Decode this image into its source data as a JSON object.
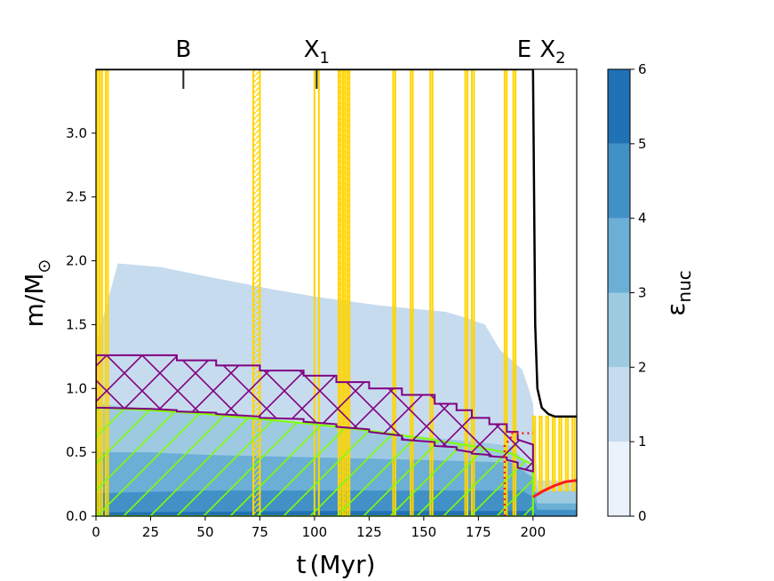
{
  "chart_data": {
    "type": "kippenhahn",
    "xlabel_main": "t",
    "xlabel_unit": "(Myr)",
    "ylabel_main": "m/M",
    "ylabel_sub": "⊙",
    "xlim": [
      0,
      220
    ],
    "ylim": [
      0,
      3.5
    ],
    "xticks": [
      0,
      25,
      50,
      75,
      100,
      125,
      150,
      175,
      200
    ],
    "yticks": [
      0.0,
      0.5,
      1.0,
      1.5,
      2.0,
      2.5,
      3.0
    ],
    "events": [
      {
        "label": "B",
        "sub": "",
        "t": 40,
        "mark": true
      },
      {
        "label": "X",
        "sub": "1",
        "t": 101,
        "mark": true
      },
      {
        "label": "E",
        "sub": "",
        "t": 196,
        "mark": false
      },
      {
        "label": "X",
        "sub": "2",
        "t": 209,
        "mark": false
      }
    ],
    "colorbar": {
      "label_main": "ε",
      "label_sub": "nuc",
      "ticks": [
        0,
        1,
        2,
        3,
        4,
        5,
        6
      ],
      "levels": [
        "#eaf2fb",
        "#c7dbef",
        "#9ecae1",
        "#6baed6",
        "#4191c6",
        "#2171b5",
        "#08519c"
      ]
    },
    "stellar_mass": {
      "t": [
        0,
        200,
        201,
        202,
        204,
        207,
        210,
        220
      ],
      "m": [
        3.5,
        3.5,
        1.5,
        1.0,
        0.85,
        0.8,
        0.78,
        0.78
      ]
    },
    "nuc_regions": [
      {
        "level": 1,
        "t": [
          0,
          10,
          30,
          50,
          80,
          100,
          130,
          160,
          170,
          178,
          185,
          195,
          198,
          200,
          202,
          220
        ],
        "m_top": [
          1.35,
          1.98,
          1.95,
          1.88,
          1.78,
          1.72,
          1.65,
          1.6,
          1.55,
          1.5,
          1.3,
          1.15,
          1.0,
          0.88,
          0.28,
          0.28
        ]
      },
      {
        "level": 2,
        "t": [
          0,
          25,
          50,
          75,
          100,
          125,
          150,
          175,
          190,
          200,
          202,
          220
        ],
        "m_top": [
          0.88,
          0.84,
          0.8,
          0.76,
          0.72,
          0.67,
          0.62,
          0.58,
          0.55,
          0.35,
          0.2,
          0.2
        ]
      },
      {
        "level": 3,
        "t": [
          0,
          25,
          50,
          100,
          150,
          190,
          200,
          202,
          220
        ],
        "m_top": [
          0.5,
          0.5,
          0.48,
          0.46,
          0.44,
          0.42,
          0.3,
          0.1,
          0.1
        ]
      },
      {
        "level": 4,
        "t": [
          0,
          50,
          100,
          150,
          195,
          200,
          202,
          220
        ],
        "m_top": [
          0.18,
          0.2,
          0.2,
          0.2,
          0.2,
          0.15,
          0.05,
          0.05
        ]
      },
      {
        "level": 5,
        "t": [
          0,
          100,
          200,
          202
        ],
        "m_top": [
          0.03,
          0.04,
          0.04,
          0.0
        ]
      }
    ],
    "envelope_convection": {
      "t": [
        0,
        25,
        37,
        37,
        55,
        55,
        75,
        75,
        95,
        95,
        110,
        110,
        125,
        125,
        140,
        140,
        155,
        155,
        165,
        165,
        172,
        172,
        180,
        180,
        188,
        188,
        193,
        193,
        200
      ],
      "m_top": [
        1.26,
        1.26,
        1.26,
        1.22,
        1.22,
        1.18,
        1.18,
        1.14,
        1.14,
        1.1,
        1.1,
        1.05,
        1.05,
        1.0,
        1.0,
        0.95,
        0.95,
        0.88,
        0.88,
        0.83,
        0.83,
        0.77,
        0.77,
        0.72,
        0.72,
        0.66,
        0.66,
        0.6,
        0.56
      ],
      "m_bottom": [
        0.85,
        0.84,
        0.83,
        0.82,
        0.81,
        0.8,
        0.78,
        0.77,
        0.76,
        0.74,
        0.72,
        0.7,
        0.68,
        0.66,
        0.63,
        0.6,
        0.58,
        0.55,
        0.54,
        0.52,
        0.5,
        0.49,
        0.48,
        0.47,
        0.46,
        0.44,
        0.42,
        0.38,
        0.35
      ],
      "color": "#800080"
    },
    "core_convection": {
      "t": [
        0,
        25,
        50,
        75,
        100,
        125,
        150,
        175,
        190,
        200
      ],
      "m_top": [
        0.85,
        0.83,
        0.8,
        0.76,
        0.72,
        0.67,
        0.61,
        0.54,
        0.49,
        0.4
      ],
      "color": "#7fff00"
    },
    "burning_lines": {
      "color": "#ff1a1a",
      "dotted": {
        "t": [
          187,
          187,
          190,
          190,
          193,
          200
        ],
        "m": [
          0.0,
          0.55,
          0.62,
          0.65,
          0.65,
          0.65
        ]
      },
      "solid": {
        "t": [
          200,
          205,
          210,
          215,
          220
        ],
        "m": [
          0.15,
          0.2,
          0.24,
          0.27,
          0.28
        ]
      }
    },
    "flashes": {
      "color": "#ffd500",
      "t_ranges": [
        [
          0.5,
          1.5
        ],
        [
          1.8,
          2.8
        ],
        [
          4.5,
          5.5
        ],
        [
          72,
          75
        ],
        [
          100,
          102
        ],
        [
          111,
          112
        ],
        [
          113,
          114
        ],
        [
          115,
          116
        ],
        [
          136,
          137
        ],
        [
          144,
          145
        ],
        [
          153,
          154
        ],
        [
          169,
          170
        ],
        [
          172,
          173
        ],
        [
          187,
          188
        ],
        [
          191,
          192
        ]
      ],
      "post_t_ranges": [
        [
          200,
          201
        ],
        [
          203,
          204
        ],
        [
          206,
          207
        ],
        [
          209,
          210
        ],
        [
          212,
          213
        ],
        [
          215,
          216
        ],
        [
          218,
          219
        ]
      ],
      "hatched": [
        [
          72,
          75
        ],
        [
          111,
          116
        ]
      ]
    }
  }
}
